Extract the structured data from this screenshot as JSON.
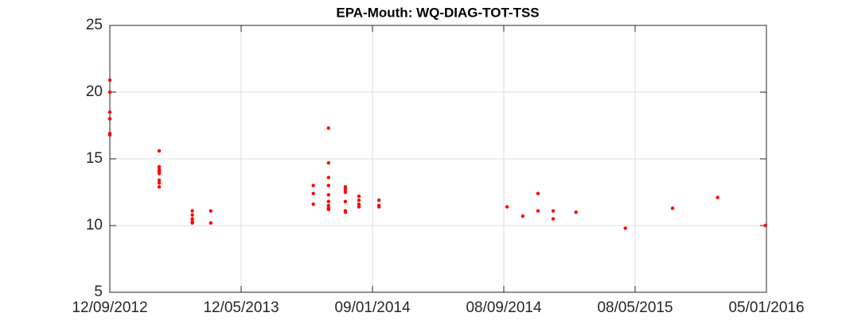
{
  "chart_data": {
    "type": "scatter",
    "title": "EPA-Mouth: WQ-DIAG-TOT-TSS",
    "x": [
      "2012-09-12",
      "2012-09-12",
      "2012-09-12",
      "2012-09-12",
      "2012-09-12",
      "2012-09-12",
      "2012-12-12",
      "2012-12-12",
      "2012-12-12",
      "2012-12-12",
      "2012-12-12",
      "2012-12-12",
      "2012-12-12",
      "2012-12-12",
      "2012-12-12",
      "2013-02-11",
      "2013-02-11",
      "2013-02-11",
      "2013-02-11",
      "2013-02-11",
      "2013-03-17",
      "2013-03-17",
      "2013-09-22",
      "2013-09-22",
      "2013-09-22",
      "2013-10-20",
      "2013-10-20",
      "2013-10-20",
      "2013-10-20",
      "2013-10-20",
      "2013-10-20",
      "2013-10-20",
      "2013-10-20",
      "2013-10-20",
      "2013-11-20",
      "2013-11-20",
      "2013-11-20",
      "2013-11-20",
      "2013-11-20",
      "2013-11-20",
      "2013-12-15",
      "2013-12-15",
      "2013-12-15",
      "2013-12-15",
      "2014-01-21",
      "2014-01-21",
      "2014-01-21",
      "2014-09-14",
      "2014-10-13",
      "2014-11-10",
      "2014-11-10",
      "2014-12-08",
      "2014-12-08",
      "2015-01-19",
      "2015-04-20",
      "2015-07-16",
      "2015-10-07",
      "2016-01-03"
    ],
    "values": [
      20.9,
      20.0,
      18.5,
      18.0,
      16.9,
      16.8,
      15.6,
      14.4,
      14.2,
      14.1,
      14.0,
      13.9,
      13.4,
      13.2,
      12.9,
      11.1,
      10.8,
      10.5,
      10.3,
      10.2,
      11.1,
      10.2,
      13.0,
      12.4,
      11.6,
      17.3,
      14.7,
      13.6,
      13.0,
      12.3,
      11.8,
      11.5,
      11.3,
      11.2,
      12.9,
      12.7,
      12.5,
      11.8,
      11.1,
      11.0,
      12.2,
      11.9,
      11.6,
      11.4,
      11.9,
      11.5,
      11.4,
      11.4,
      10.7,
      12.4,
      11.1,
      11.1,
      10.5,
      11.0,
      9.8,
      11.3,
      12.1,
      10.0
    ],
    "color": "#ff0000",
    "xlim": [
      "2012-09-12",
      "2016-01-05"
    ],
    "xticks": [
      {
        "value": "2012-09-12",
        "label": "12/09/2012"
      },
      {
        "value": "2013-05-12",
        "label": "12/05/2013"
      },
      {
        "value": "2014-01-09",
        "label": "09/01/2014"
      },
      {
        "value": "2014-09-08",
        "label": "08/09/2014"
      },
      {
        "value": "2015-05-08",
        "label": "08/05/2015"
      },
      {
        "value": "2016-01-05",
        "label": "05/01/2016"
      }
    ],
    "ylim": [
      5,
      25
    ],
    "yticks": [
      5,
      10,
      15,
      20,
      25
    ],
    "grid": true
  }
}
